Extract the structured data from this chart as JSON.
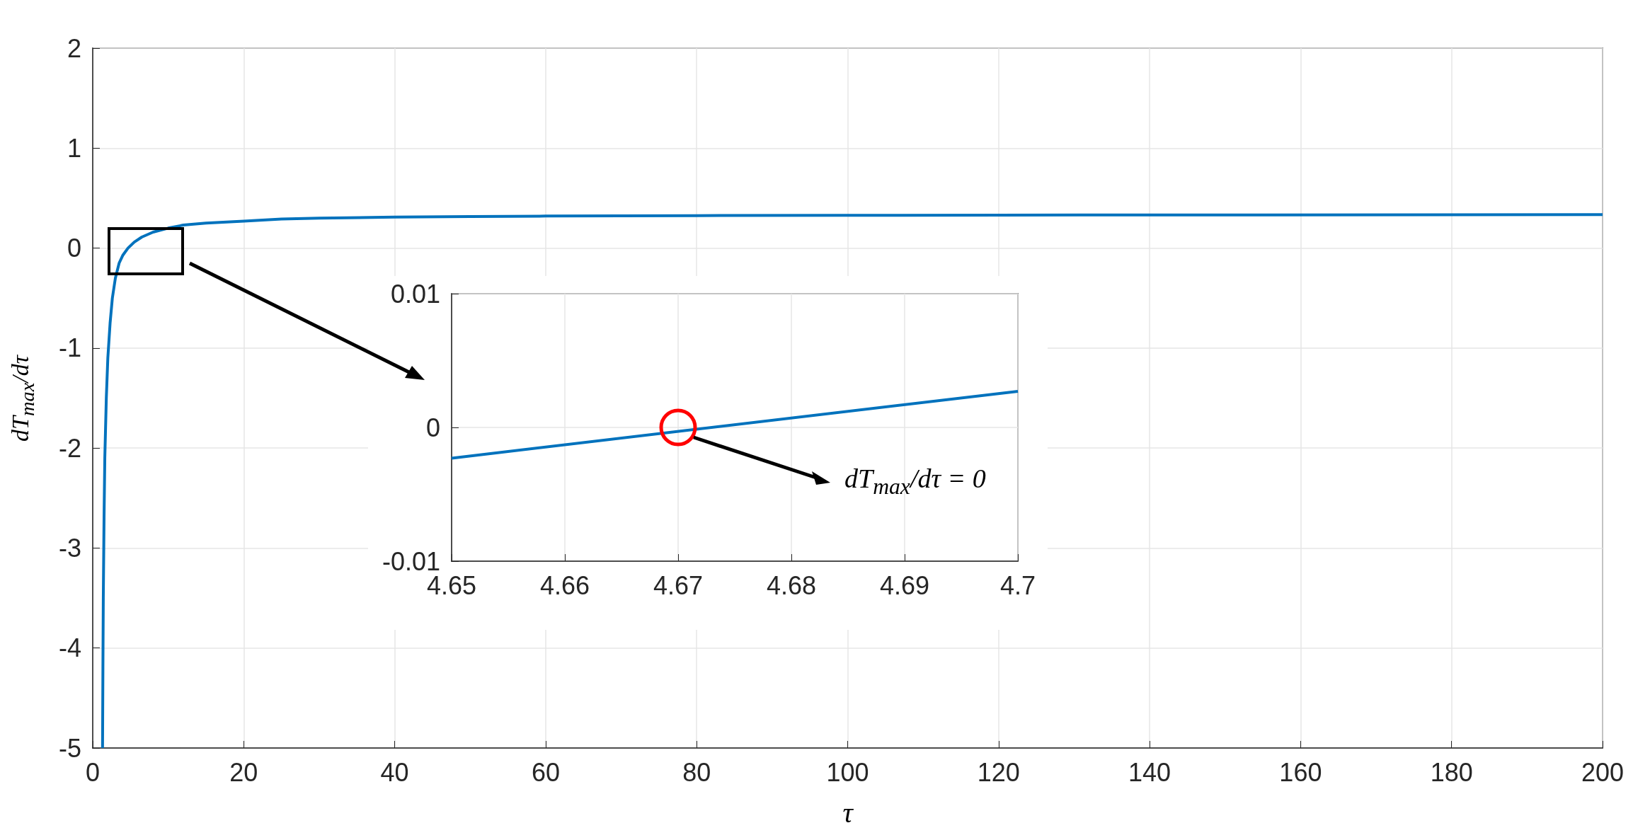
{
  "chart_data": [
    {
      "type": "line",
      "xlabel": "τ",
      "ylabel": "dT$_{max}$/dτ",
      "xlim": [
        0,
        200
      ],
      "ylim": [
        -5,
        2
      ],
      "xticks": [
        0,
        20,
        40,
        60,
        80,
        100,
        120,
        140,
        160,
        180,
        200
      ],
      "yticks": [
        -5,
        -4,
        -3,
        -2,
        -1,
        0,
        1,
        2
      ],
      "grid": true,
      "marker": "none",
      "series": [
        {
          "color": "#0072bd",
          "x": [
            1.3,
            1.35,
            1.4,
            1.5,
            1.6,
            1.8,
            2,
            2.3,
            2.6,
            3,
            3.5,
            4,
            4.67,
            5.5,
            6.5,
            8,
            10,
            12,
            15,
            20,
            25,
            30,
            40,
            50,
            60,
            80,
            100,
            120,
            150,
            200
          ],
          "values": [
            -5,
            -4.2,
            -3.5,
            -2.7,
            -2.1,
            -1.5,
            -1.1,
            -0.75,
            -0.5,
            -0.3,
            -0.15,
            -0.07,
            0,
            0.06,
            0.11,
            0.16,
            0.2,
            0.23,
            0.25,
            0.27,
            0.29,
            0.3,
            0.31,
            0.315,
            0.32,
            0.325,
            0.328,
            0.33,
            0.332,
            0.335
          ]
        }
      ]
    },
    {
      "type": "line",
      "xlim": [
        4.65,
        4.7
      ],
      "ylim": [
        -0.01,
        0.01
      ],
      "xticks": [
        4.65,
        4.66,
        4.67,
        4.68,
        4.69,
        4.7
      ],
      "yticks": [
        -0.01,
        0,
        0.01
      ],
      "grid": true,
      "marker": "none",
      "annotations": [
        "dT$_{max}$/dτ = 0"
      ],
      "series": [
        {
          "color": "#0072bd",
          "x": [
            4.65,
            4.7
          ],
          "values": [
            -0.0023,
            0.0027
          ]
        }
      ]
    }
  ]
}
